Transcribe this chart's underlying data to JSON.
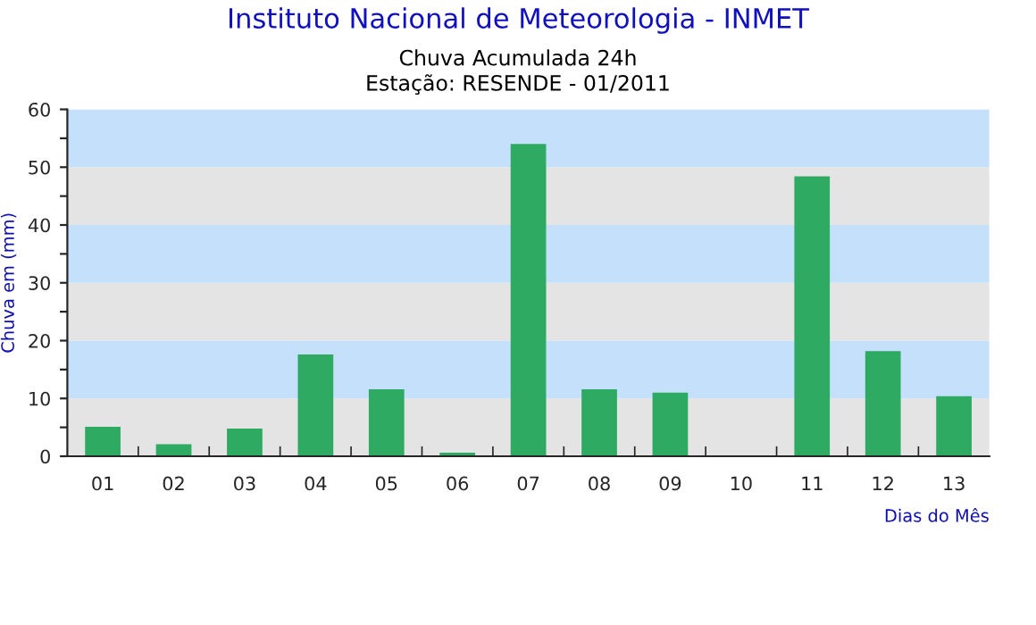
{
  "chart_data": {
    "type": "bar",
    "title": "Instituto Nacional de Meteorologia - INMET",
    "subtitle": "Chuva Acumulada 24h\nEstação: RESENDE - 01/2011",
    "xlabel": "Dias do Mês",
    "ylabel": "Chuva em (mm)",
    "categories": [
      "01",
      "02",
      "03",
      "04",
      "05",
      "06",
      "07",
      "08",
      "09",
      "10",
      "11",
      "12",
      "13"
    ],
    "values": [
      5.1,
      2.1,
      4.8,
      17.6,
      11.6,
      0.6,
      54.0,
      11.6,
      11.0,
      0,
      48.4,
      18.2,
      10.4
    ],
    "color": "#2eaa62",
    "ylim": [
      0,
      60
    ],
    "yticks": [
      0,
      {
        "value": 5,
        "label": null
      },
      10,
      {
        "value": 15,
        "label": null
      },
      20,
      {
        "value": 25,
        "label": null
      },
      30,
      {
        "value": 35,
        "label": null
      },
      40,
      {
        "value": 45,
        "label": null
      },
      50,
      {
        "value": 55,
        "label": null
      },
      60
    ]
  }
}
